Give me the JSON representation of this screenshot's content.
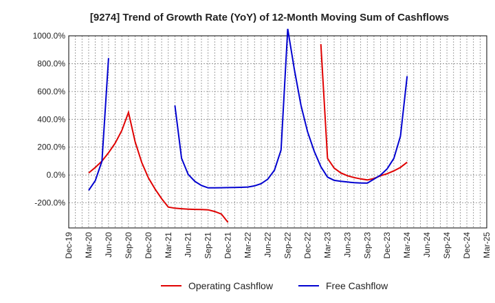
{
  "chart_data": {
    "type": "line",
    "title": "[9274]  Trend of Growth Rate (YoY) of 12-Month Moving Sum of Cashflows",
    "xlabel": "",
    "ylabel": "",
    "ylim": [
      -380,
      1000
    ],
    "yticks": [
      -200,
      0,
      200,
      400,
      600,
      800,
      1000
    ],
    "ytick_labels": [
      "-200.0%",
      "0.0%",
      "200.0%",
      "400.0%",
      "600.0%",
      "800.0%",
      "1000.0%"
    ],
    "x_tick_labels": [
      "Dec-19",
      "Mar-20",
      "Jun-20",
      "Sep-20",
      "Dec-20",
      "Mar-21",
      "Jun-21",
      "Sep-21",
      "Dec-21",
      "Mar-22",
      "Jun-22",
      "Sep-22",
      "Dec-22",
      "Mar-23",
      "Jun-23",
      "Sep-23",
      "Dec-23",
      "Mar-24",
      "Jun-24",
      "Sep-24",
      "Dec-24",
      "Mar-25"
    ],
    "grid": true,
    "legend_position": "bottom",
    "series": [
      {
        "name": "Operating Cashflow",
        "color": "#e00000",
        "points": [
          [
            "Mar-20",
            15
          ],
          [
            "Apr-20",
            55
          ],
          [
            "May-20",
            100
          ],
          [
            "Jun-20",
            160
          ],
          [
            "Jul-20",
            230
          ],
          [
            "Aug-20",
            320
          ],
          [
            "Sep-20",
            450
          ],
          [
            "Oct-20",
            240
          ],
          [
            "Nov-20",
            90
          ],
          [
            "Dec-20",
            -20
          ],
          [
            "Jan-21",
            -100
          ],
          [
            "Feb-21",
            -170
          ],
          [
            "Mar-21",
            -230
          ],
          [
            "Apr-21",
            -238
          ],
          [
            "May-21",
            -242
          ],
          [
            "Jun-21",
            -245
          ],
          [
            "Jul-21",
            -247
          ],
          [
            "Aug-21",
            -248
          ],
          [
            "Sep-21",
            -250
          ],
          [
            "Oct-21",
            -262
          ],
          [
            "Nov-21",
            -280
          ],
          [
            "Dec-21",
            -340
          ],
          null,
          [
            "Feb-23",
            940
          ],
          [
            "Mar-23",
            120
          ],
          [
            "Apr-23",
            50
          ],
          [
            "May-23",
            15
          ],
          [
            "Jun-23",
            -5
          ],
          [
            "Jul-23",
            -18
          ],
          [
            "Aug-23",
            -28
          ],
          [
            "Sep-23",
            -35
          ],
          [
            "Oct-23",
            -25
          ],
          [
            "Nov-23",
            -5
          ],
          [
            "Dec-23",
            10
          ],
          [
            "Jan-24",
            30
          ],
          [
            "Feb-24",
            55
          ],
          [
            "Mar-24",
            92
          ]
        ]
      },
      {
        "name": "Free Cashflow",
        "color": "#0000d0",
        "points": [
          [
            "Mar-20",
            -110
          ],
          [
            "Apr-20",
            -40
          ],
          [
            "May-20",
            100
          ],
          [
            "Jun-20",
            840
          ],
          null,
          [
            "Apr-21",
            500
          ],
          [
            "May-21",
            120
          ],
          [
            "Jun-21",
            5
          ],
          [
            "Jul-21",
            -45
          ],
          [
            "Aug-21",
            -75
          ],
          [
            "Sep-21",
            -92
          ],
          [
            "Oct-21",
            -92
          ],
          [
            "Nov-21",
            -91
          ],
          [
            "Dec-21",
            -90
          ],
          [
            "Jan-22",
            -89
          ],
          [
            "Feb-22",
            -88
          ],
          [
            "Mar-22",
            -86
          ],
          [
            "Apr-22",
            -78
          ],
          [
            "May-22",
            -62
          ],
          [
            "Jun-22",
            -30
          ],
          [
            "Jul-22",
            35
          ],
          [
            "Aug-22",
            180
          ],
          [
            "Sep-22",
            1050
          ],
          [
            "Oct-22",
            760
          ],
          [
            "Nov-22",
            500
          ],
          [
            "Dec-22",
            310
          ],
          [
            "Jan-23",
            170
          ],
          [
            "Feb-23",
            60
          ],
          [
            "Mar-23",
            -15
          ],
          [
            "Apr-23",
            -38
          ],
          [
            "May-23",
            -45
          ],
          [
            "Jun-23",
            -50
          ],
          [
            "Jul-23",
            -55
          ],
          [
            "Aug-23",
            -57
          ],
          [
            "Sep-23",
            -58
          ],
          [
            "Oct-23",
            -30
          ],
          [
            "Nov-23",
            0
          ],
          [
            "Dec-23",
            45
          ],
          [
            "Jan-24",
            120
          ],
          [
            "Feb-24",
            280
          ],
          [
            "Mar-24",
            710
          ]
        ]
      }
    ]
  }
}
